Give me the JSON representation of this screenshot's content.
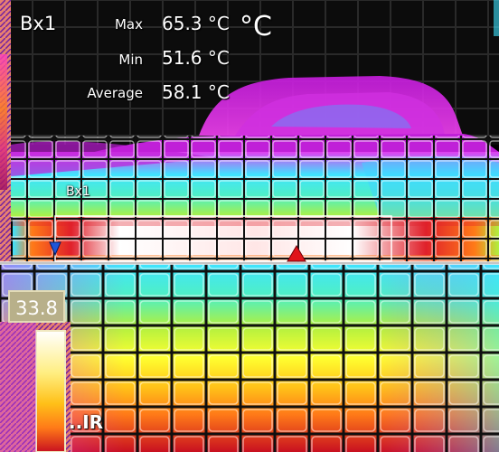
{
  "measurement": {
    "box_id": "Bx1",
    "max_label": "Max",
    "max_value": "65.3 °C",
    "min_label": "Min",
    "min_value": "51.6 °C",
    "avg_label": "Average",
    "avg_value": "58.1 °C",
    "unit_symbol": "°C"
  },
  "roi_box": {
    "label": "Bx1"
  },
  "scale": {
    "top_value": "33.8"
  },
  "brand": {
    "text": "..IR"
  },
  "markers": {
    "cold_marker_color": "#1e56d8",
    "hot_marker_color": "#e0141a"
  },
  "palette": [
    "#3a1060",
    "#7a10a0",
    "#c81ce0",
    "#f040f0",
    "#3fe4ff",
    "#5ef0d0",
    "#b0f040",
    "#ffff30",
    "#ffc018",
    "#ff7a18",
    "#e0202a",
    "#b01020",
    "#ffffff"
  ]
}
